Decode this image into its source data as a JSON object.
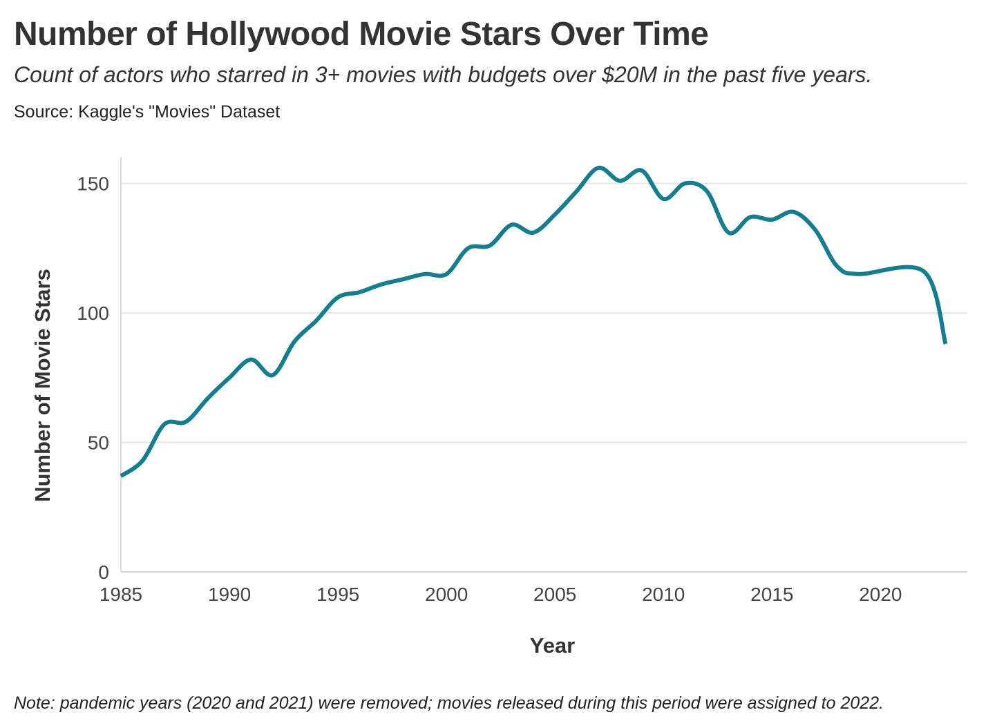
{
  "header": {
    "title": "Number of Hollywood Movie Stars Over Time",
    "subtitle": "Count of actors who starred in 3+ movies with budgets over $20M in the past five years.",
    "source": "Source: Kaggle's \"Movies\" Dataset"
  },
  "footer": {
    "note": "Note: pandemic years (2020 and 2021) were removed; movies released during this period were assigned to 2022."
  },
  "colors": {
    "line": "#137e8f",
    "grid": "#e6e6e6",
    "axis": "#d9d9d9"
  },
  "chart_data": {
    "type": "line",
    "title": "Number of Hollywood Movie Stars Over Time",
    "subtitle": "Count of actors who starred in 3+ movies with budgets over $20M in the past five years.",
    "xlabel": "Year",
    "ylabel": "Number of Movie Stars",
    "xlim": [
      1985,
      2024
    ],
    "ylim": [
      0,
      160
    ],
    "xticks": [
      1985,
      1990,
      1995,
      2000,
      2005,
      2010,
      2015,
      2020
    ],
    "yticks": [
      0,
      50,
      100,
      150
    ],
    "grid": "horizontal",
    "legend": "none",
    "series": [
      {
        "x": [
          1985,
          1986,
          1987,
          1988,
          1989,
          1990,
          1991,
          1992,
          1993,
          1994,
          1995,
          1996,
          1997,
          1998,
          1999,
          2000,
          2001,
          2002,
          2003,
          2004,
          2005,
          2006,
          2007,
          2008,
          2009,
          2010,
          2011,
          2012,
          2013,
          2014,
          2015,
          2016,
          2017,
          2018,
          2019,
          2022,
          2023
        ],
        "values": [
          37,
          43,
          57,
          58,
          67,
          75,
          82,
          76,
          89,
          97,
          106,
          108,
          111,
          113,
          115,
          115,
          125,
          126,
          134,
          131,
          138,
          147,
          156,
          151,
          155,
          144,
          150,
          147,
          131,
          137,
          136,
          139,
          132,
          118,
          115,
          116,
          88
        ]
      }
    ]
  }
}
